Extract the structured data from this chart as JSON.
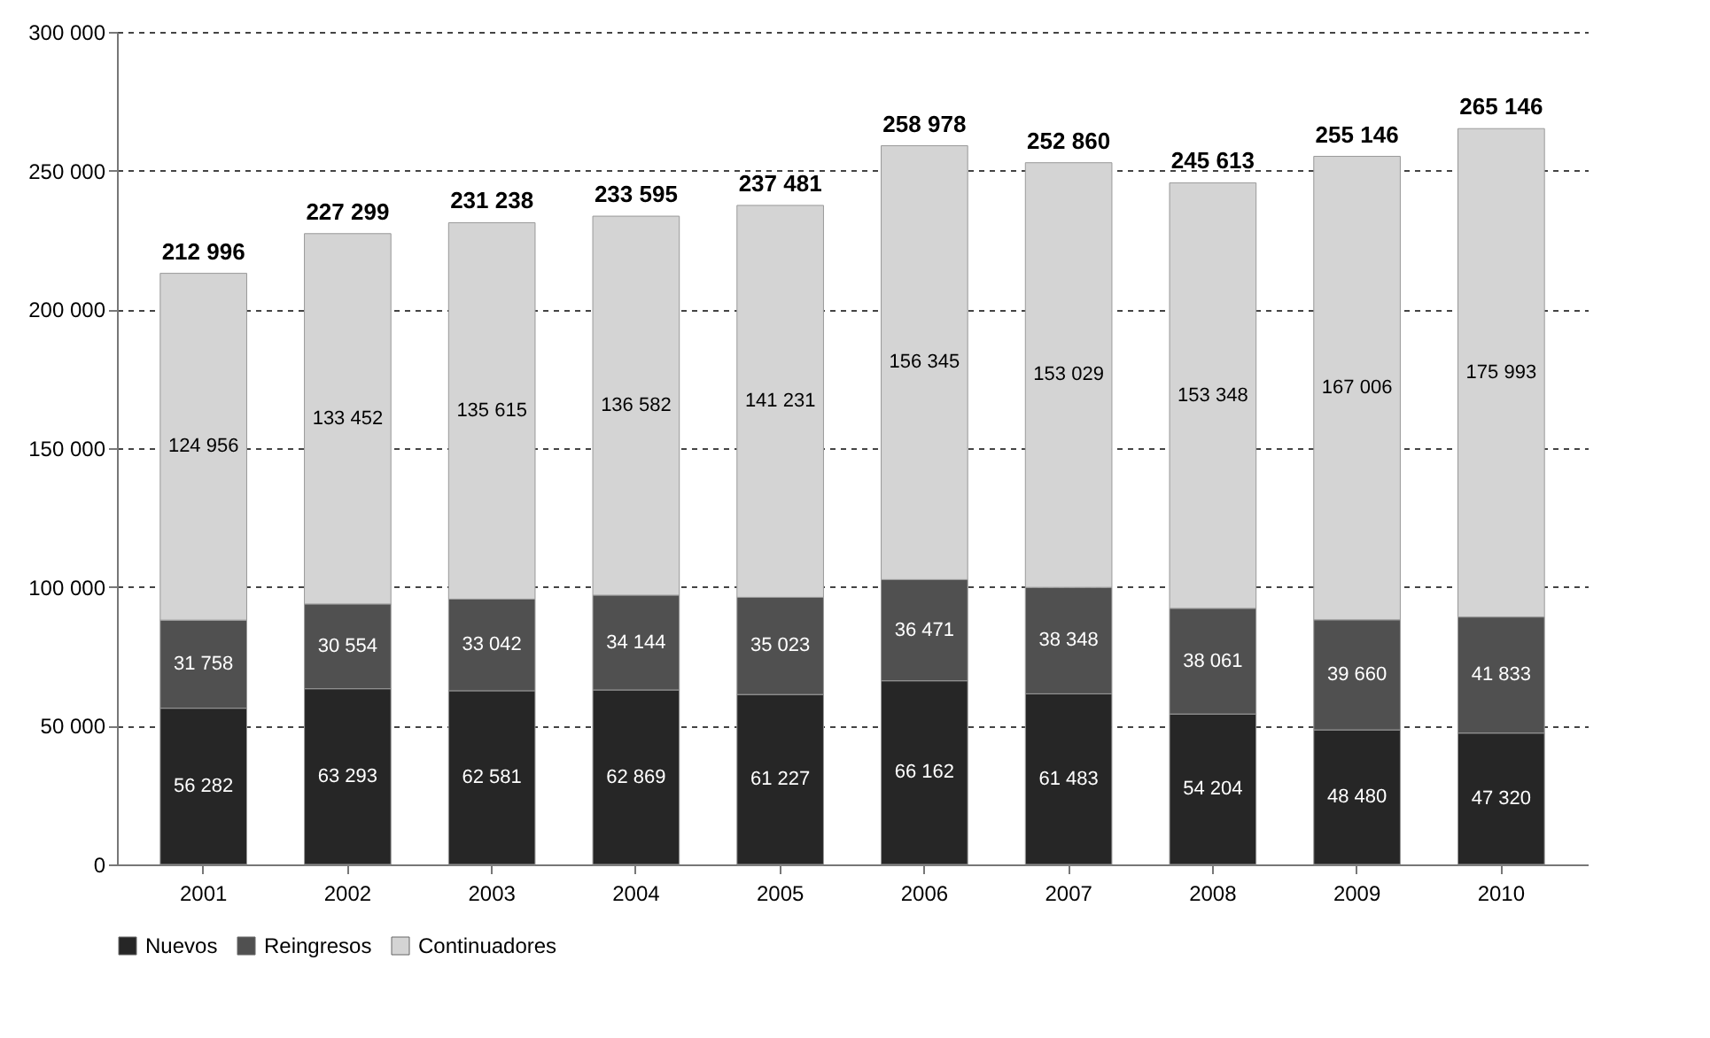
{
  "chart_data": {
    "type": "bar",
    "stacked": true,
    "categories": [
      "2001",
      "2002",
      "2003",
      "2004",
      "2005",
      "2006",
      "2007",
      "2008",
      "2009",
      "2010"
    ],
    "series": [
      {
        "name": "Nuevos",
        "color": "#262626",
        "values": [
          56282,
          63293,
          62581,
          62869,
          61227,
          66162,
          61483,
          54204,
          48480,
          47320
        ],
        "value_labels": [
          "56 282",
          "63 293",
          "62 581",
          "62 869",
          "61 227",
          "66 162",
          "61 483",
          "54 204",
          "48 480",
          "47 320"
        ]
      },
      {
        "name": "Reingresos",
        "color": "#505050",
        "values": [
          31758,
          30554,
          33042,
          34144,
          35023,
          36471,
          38348,
          38061,
          39660,
          41833
        ],
        "value_labels": [
          "31 758",
          "30 554",
          "33 042",
          "34 144",
          "35 023",
          "36 471",
          "38 348",
          "38 061",
          "39 660",
          "41 833"
        ]
      },
      {
        "name": "Continuadores",
        "color": "#d4d4d4",
        "values": [
          124956,
          133452,
          135615,
          136582,
          141231,
          156345,
          153029,
          153348,
          167006,
          175993
        ],
        "value_labels": [
          "124 956",
          "133 452",
          "135 615",
          "136 582",
          "141 231",
          "156 345",
          "153 029",
          "153 348",
          "167 006",
          "175 993"
        ]
      }
    ],
    "totals": [
      "212 996",
      "227 299",
      "231 238",
      "233 595",
      "237 481",
      "258 978",
      "252 860",
      "245 613",
      "255 146",
      "265 146"
    ],
    "ylim": [
      0,
      300000
    ],
    "yticks": [
      {
        "value": 0,
        "label": "0"
      },
      {
        "value": 50000,
        "label": "50 000"
      },
      {
        "value": 100000,
        "label": "100 000"
      },
      {
        "value": 150000,
        "label": "150 000"
      },
      {
        "value": 200000,
        "label": "200 000"
      },
      {
        "value": 250000,
        "label": "250 000"
      },
      {
        "value": 300000,
        "label": "300 000"
      }
    ],
    "grid": "y",
    "legend": "bottom"
  }
}
